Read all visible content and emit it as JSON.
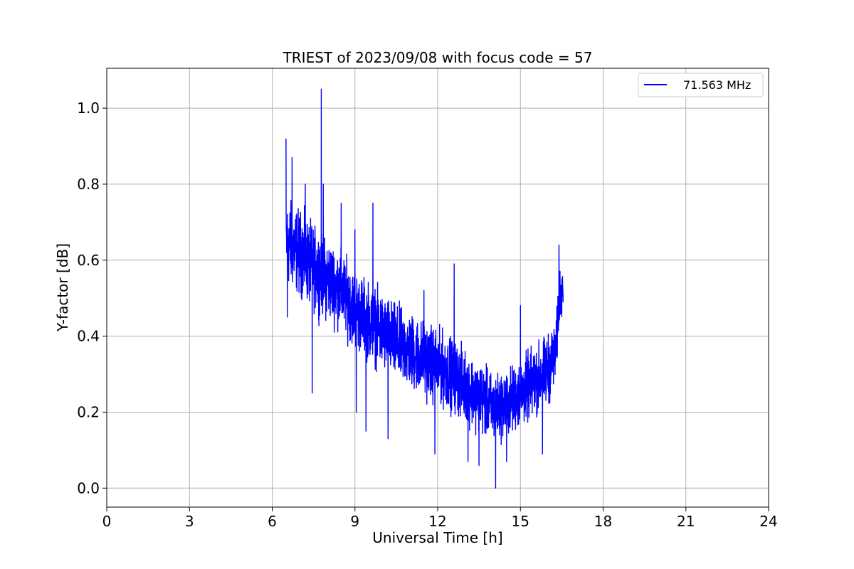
{
  "chart_data": {
    "type": "line",
    "title": "TRIEST of 2023/09/08 with focus code = 57",
    "xlabel": "Universal Time [h]",
    "ylabel": "Y-factor [dB]",
    "xlim": [
      0,
      24
    ],
    "ylim": [
      -0.05,
      1.105
    ],
    "x_ticks": [
      0,
      3,
      6,
      9,
      12,
      15,
      18,
      21,
      24
    ],
    "x_tick_labels": [
      "0",
      "3",
      "6",
      "9",
      "12",
      "15",
      "18",
      "21",
      "24"
    ],
    "y_ticks": [
      0.0,
      0.2,
      0.4,
      0.6,
      0.8,
      1.0
    ],
    "y_tick_labels": [
      "0.0",
      "0.2",
      "0.4",
      "0.6",
      "0.8",
      "1.0"
    ],
    "grid": true,
    "legend_position": "top-right",
    "colors": {
      "series": "#0000ff",
      "grid": "#b0b0b0",
      "axes": "#000000"
    },
    "series": [
      {
        "name": "71.563 MHz",
        "color": "#0000ff",
        "x_start": 6.5,
        "x_end": 16.55,
        "trend": [
          [
            6.5,
            0.65
          ],
          [
            7.0,
            0.62
          ],
          [
            7.5,
            0.58
          ],
          [
            8.0,
            0.55
          ],
          [
            8.5,
            0.52
          ],
          [
            9.0,
            0.47
          ],
          [
            9.5,
            0.44
          ],
          [
            10.0,
            0.41
          ],
          [
            10.5,
            0.38
          ],
          [
            11.0,
            0.36
          ],
          [
            11.5,
            0.34
          ],
          [
            12.0,
            0.32
          ],
          [
            12.5,
            0.3
          ],
          [
            13.0,
            0.27
          ],
          [
            13.5,
            0.24
          ],
          [
            14.0,
            0.21
          ],
          [
            14.5,
            0.22
          ],
          [
            15.0,
            0.25
          ],
          [
            15.5,
            0.28
          ],
          [
            16.0,
            0.31
          ],
          [
            16.3,
            0.36
          ],
          [
            16.4,
            0.5
          ],
          [
            16.55,
            0.55
          ]
        ],
        "band": [
          [
            6.5,
            0.16
          ],
          [
            7.5,
            0.15
          ],
          [
            9.0,
            0.14
          ],
          [
            11.0,
            0.14
          ],
          [
            13.0,
            0.13
          ],
          [
            14.5,
            0.12
          ],
          [
            16.0,
            0.13
          ],
          [
            16.55,
            0.1
          ]
        ],
        "peaks": [
          [
            6.5,
            0.92
          ],
          [
            6.72,
            0.87
          ],
          [
            7.2,
            0.8
          ],
          [
            7.78,
            1.05
          ],
          [
            7.85,
            0.8
          ],
          [
            8.5,
            0.75
          ],
          [
            9.0,
            0.68
          ],
          [
            9.65,
            0.75
          ],
          [
            11.5,
            0.52
          ],
          [
            12.6,
            0.59
          ],
          [
            15.0,
            0.48
          ],
          [
            16.4,
            0.64
          ]
        ],
        "troughs": [
          [
            6.55,
            0.45
          ],
          [
            7.45,
            0.25
          ],
          [
            9.05,
            0.2
          ],
          [
            9.4,
            0.15
          ],
          [
            10.2,
            0.13
          ],
          [
            11.9,
            0.09
          ],
          [
            13.1,
            0.07
          ],
          [
            13.5,
            0.06
          ],
          [
            14.1,
            0.0
          ],
          [
            14.5,
            0.07
          ],
          [
            15.8,
            0.09
          ]
        ]
      }
    ]
  }
}
